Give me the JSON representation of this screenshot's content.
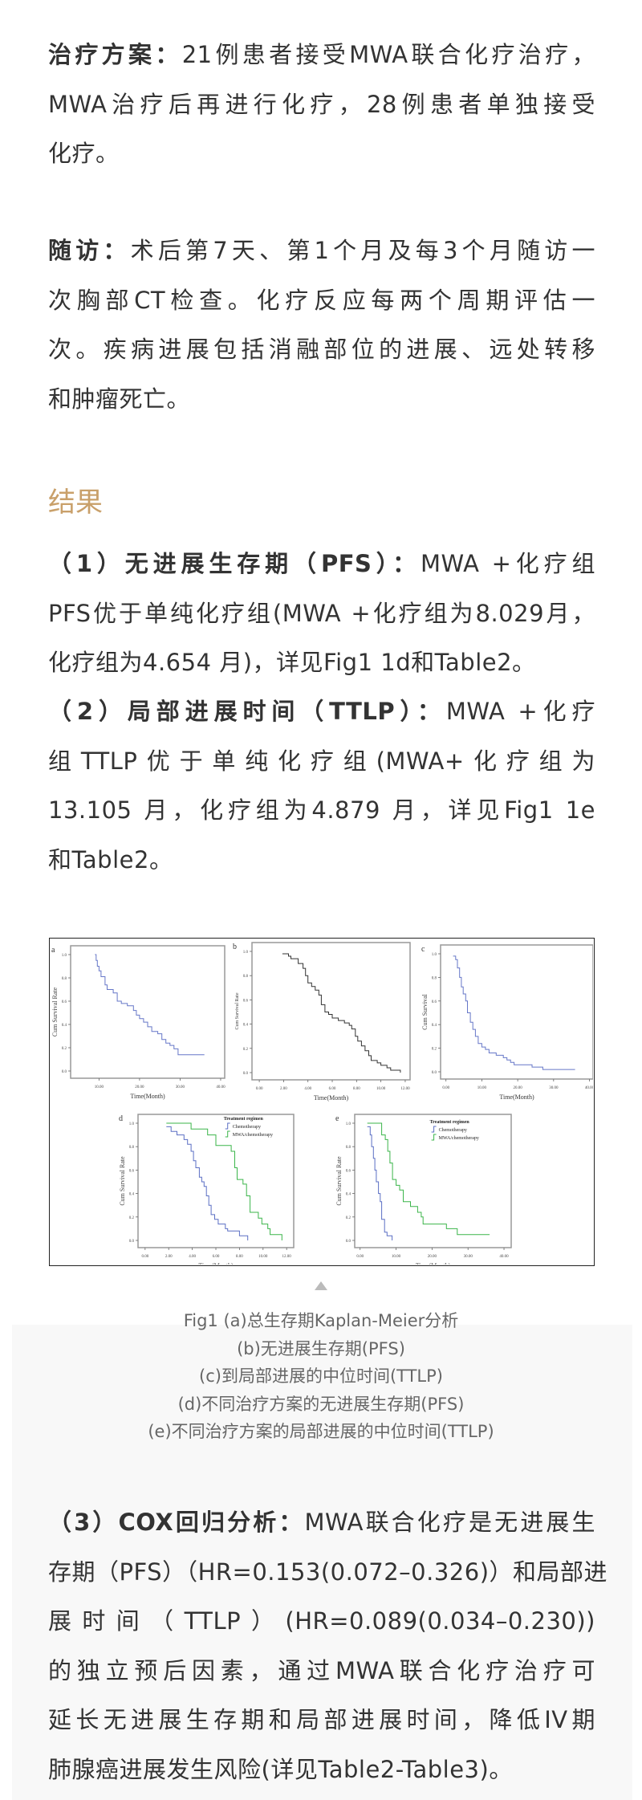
{
  "treatment": {
    "label": "治疗方案：",
    "lines": [
      "21例患者接受MWA联合化疗治疗，",
      "MWA治疗后再进行化疗，28例患者单独接受",
      "化疗。"
    ]
  },
  "followup": {
    "label": "随访：",
    "lines": [
      "术后第7天、第1个月及每3个月随访一",
      "次胸部CT检查。化疗反应每两个周期评估一",
      "次。疾病进展包括消融部位的进展、远处转移",
      "和肿瘤死亡。"
    ]
  },
  "results": {
    "heading": "结果",
    "item1": {
      "label": "（1）无进展生存期（PFS）：",
      "lines": [
        "MWA +化疗组",
        "PFS优于单纯化疗组(MWA +化疗组为8.029月，",
        "化疗组为4.654 月)，详见Fig1 1d和Table2。"
      ]
    },
    "item2": {
      "label": "（2）局部进展时间（TTLP）：",
      "lines": [
        "MWA +化疗",
        "组TTLP优于单纯化疗组(MWA+化疗组为",
        "13.105 月，化疗组为4.879 月，详见Fig1 1e",
        "和Table2。"
      ]
    },
    "item3": {
      "label": "（3）COX回归分析：",
      "lines": [
        "MWA联合化疗是无进展生",
        "存期（PFS）（HR=0.153(0.072–0.326)）和局部进",
        "展时间（TTLP）(HR=0.089(0.034–0.230))",
        "的独立预后因素，通过MWA联合化疗治疗可",
        "延长无进展生存期和局部进展时间，降低IV期",
        "肺腺癌进展发生风险(详见Table2-Table3)。"
      ]
    }
  },
  "figure": {
    "colors": {
      "chemotherapy": "#5b6fc4",
      "mwa": "#3bb54a",
      "overall": "#333333"
    },
    "ylabel": "Cum Survival Rate",
    "ylabel_c": "Cum Survival",
    "xlabel": "Time(Month)",
    "yticks": [
      "0.0",
      "0.2",
      "0.4",
      "0.6",
      "0.8",
      "1.0"
    ],
    "legend_title": "Treatment regimen",
    "legend": [
      "Chemotherapy",
      "MWA/chemotherapy"
    ],
    "panels": [
      {
        "id": "a",
        "xticks": [
          "10.00",
          "20.00",
          "30.00",
          "40.00"
        ],
        "xmin": 3,
        "xmax": 41,
        "series": [
          {
            "color": "overall_blue",
            "points": [
              [
                9,
                1
              ],
              [
                9.3,
                0.95
              ],
              [
                9.6,
                0.9
              ],
              [
                10,
                0.86
              ],
              [
                10.5,
                0.81
              ],
              [
                11.5,
                0.74
              ],
              [
                12,
                0.7
              ],
              [
                13.5,
                0.67
              ],
              [
                14.5,
                0.6
              ],
              [
                15.5,
                0.58
              ],
              [
                17,
                0.56
              ],
              [
                18.5,
                0.52
              ],
              [
                19.2,
                0.48
              ],
              [
                20,
                0.45
              ],
              [
                21,
                0.42
              ],
              [
                22,
                0.38
              ],
              [
                23,
                0.34
              ],
              [
                24.5,
                0.32
              ],
              [
                25.5,
                0.27
              ],
              [
                26.5,
                0.24
              ],
              [
                27.5,
                0.22
              ],
              [
                28.5,
                0.19
              ],
              [
                29.5,
                0.14
              ],
              [
                36,
                0.14
              ]
            ]
          }
        ]
      },
      {
        "id": "b",
        "xticks": [
          "0.00",
          "2.00",
          "4.00",
          "6.00",
          "8.00",
          "10.00",
          "12.00"
        ],
        "xmin": -0.6,
        "xmax": 12.4,
        "series": [
          {
            "color": "overall",
            "points": [
              [
                1.9,
                0.98
              ],
              [
                2.4,
                0.96
              ],
              [
                2.6,
                0.94
              ],
              [
                3.2,
                0.9
              ],
              [
                3.6,
                0.86
              ],
              [
                3.8,
                0.8
              ],
              [
                4,
                0.74
              ],
              [
                4.3,
                0.71
              ],
              [
                4.6,
                0.68
              ],
              [
                4.9,
                0.64
              ],
              [
                5.1,
                0.56
              ],
              [
                5.4,
                0.5
              ],
              [
                5.7,
                0.48
              ],
              [
                6,
                0.45
              ],
              [
                6.5,
                0.43
              ],
              [
                7,
                0.41
              ],
              [
                7.4,
                0.39
              ],
              [
                7.6,
                0.36
              ],
              [
                7.9,
                0.3
              ],
              [
                8.1,
                0.26
              ],
              [
                8.4,
                0.22
              ],
              [
                8.7,
                0.18
              ],
              [
                9,
                0.14
              ],
              [
                9.2,
                0.1
              ],
              [
                9.7,
                0.08
              ],
              [
                10,
                0.06
              ],
              [
                10.5,
                0.04
              ],
              [
                10.8,
                0.02
              ],
              [
                11.6,
                0
              ]
            ]
          }
        ]
      },
      {
        "id": "c",
        "xticks": [
          "0.00",
          "10.00",
          "20.00",
          "30.00",
          "40.00"
        ],
        "xmin": -1.5,
        "xmax": 41,
        "series": [
          {
            "color": "overall_blue",
            "points": [
              [
                2,
                0.98
              ],
              [
                2.7,
                0.95
              ],
              [
                3.2,
                0.88
              ],
              [
                3.8,
                0.8
              ],
              [
                4.3,
                0.72
              ],
              [
                4.8,
                0.66
              ],
              [
                5.5,
                0.6
              ],
              [
                6,
                0.5
              ],
              [
                6.8,
                0.42
              ],
              [
                7.5,
                0.36
              ],
              [
                8.2,
                0.3
              ],
              [
                9,
                0.24
              ],
              [
                10,
                0.21
              ],
              [
                11,
                0.19
              ],
              [
                12,
                0.16
              ],
              [
                14,
                0.14
              ],
              [
                16,
                0.12
              ],
              [
                17,
                0.1
              ],
              [
                18,
                0.08
              ],
              [
                19,
                0.06
              ],
              [
                24,
                0.04
              ],
              [
                27,
                0.02
              ],
              [
                36,
                0.02
              ]
            ]
          }
        ]
      },
      {
        "id": "d",
        "xticks": [
          "0.00",
          "2.00",
          "4.00",
          "6.00",
          "8.00",
          "10.00",
          "12.00"
        ],
        "xmin": -0.6,
        "xmax": 12.6,
        "legend": true,
        "series": [
          {
            "color": "chemotherapy",
            "points": [
              [
                1.8,
                0.97
              ],
              [
                2.2,
                0.93
              ],
              [
                2.7,
                0.9
              ],
              [
                3.3,
                0.86
              ],
              [
                3.6,
                0.82
              ],
              [
                3.9,
                0.76
              ],
              [
                4.1,
                0.68
              ],
              [
                4.3,
                0.62
              ],
              [
                4.6,
                0.54
              ],
              [
                4.8,
                0.5
              ],
              [
                5,
                0.46
              ],
              [
                5.2,
                0.38
              ],
              [
                5.4,
                0.3
              ],
              [
                5.6,
                0.22
              ],
              [
                5.9,
                0.18
              ],
              [
                6.2,
                0.14
              ],
              [
                6.8,
                0.1
              ],
              [
                7,
                0.08
              ],
              [
                8,
                0.04
              ],
              [
                8.7,
                0
              ]
            ]
          },
          {
            "color": "mwa",
            "points": [
              [
                1.8,
                1
              ],
              [
                3.9,
                0.95
              ],
              [
                5.3,
                0.9
              ],
              [
                6,
                0.81
              ],
              [
                7.3,
                0.76
              ],
              [
                7.6,
                0.62
              ],
              [
                7.8,
                0.52
              ],
              [
                8.3,
                0.48
              ],
              [
                8.6,
                0.38
              ],
              [
                8.9,
                0.24
              ],
              [
                9.6,
                0.19
              ],
              [
                9.9,
                0.14
              ],
              [
                10.4,
                0.1
              ],
              [
                10.6,
                0.05
              ],
              [
                11.6,
                0
              ]
            ]
          }
        ]
      },
      {
        "id": "e",
        "xticks": [
          "0.00",
          "10.00",
          "20.00",
          "30.00",
          "40.00"
        ],
        "xmin": -1.5,
        "xmax": 42,
        "legend": true,
        "series": [
          {
            "color": "chemotherapy",
            "points": [
              [
                2,
                0.97
              ],
              [
                2.8,
                0.9
              ],
              [
                3.2,
                0.8
              ],
              [
                3.7,
                0.7
              ],
              [
                4.1,
                0.6
              ],
              [
                4.5,
                0.5
              ],
              [
                5.1,
                0.4
              ],
              [
                5.6,
                0.33
              ],
              [
                6,
                0.18
              ],
              [
                6.8,
                0.07
              ],
              [
                7.5,
                0.04
              ],
              [
                8.9,
                0
              ]
            ]
          },
          {
            "color": "mwa",
            "points": [
              [
                2,
                1
              ],
              [
                6,
                0.9
              ],
              [
                7,
                0.86
              ],
              [
                7.7,
                0.76
              ],
              [
                8.3,
                0.66
              ],
              [
                9,
                0.52
              ],
              [
                10,
                0.47
              ],
              [
                11,
                0.43
              ],
              [
                12,
                0.33
              ],
              [
                14,
                0.29
              ],
              [
                16,
                0.24
              ],
              [
                17,
                0.2
              ],
              [
                17.5,
                0.14
              ],
              [
                24,
                0.1
              ],
              [
                27,
                0.05
              ],
              [
                36,
                0.05
              ]
            ]
          }
        ]
      }
    ],
    "captions": [
      "Fig1 (a)总生存期Kaplan-Meier分析",
      "(b)无进展生存期(PFS)",
      "(c)到局部进展的中位时间(TTLP)",
      "(d)不同治疗方案的无进展生存期(PFS)",
      "(e)不同治疗方案的局部进展的中位时间(TTLP)"
    ]
  }
}
